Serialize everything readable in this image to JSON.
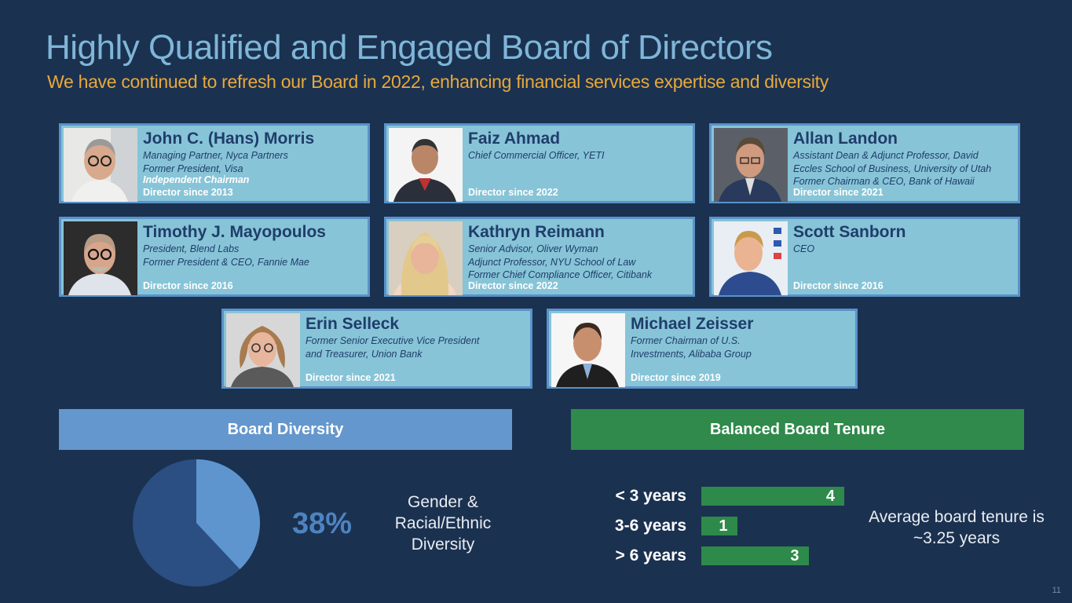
{
  "title": "Highly Qualified and Engaged Board of Directors",
  "subtitle": "We have continued to refresh our Board in 2022, enhancing financial services expertise and diversity",
  "directors": [
    {
      "name": "John C. (Hans) Morris",
      "roles": [
        "Managing Partner, Nyca Partners",
        "Former President, Visa"
      ],
      "chair": "Independent Chairman",
      "since": "Director since 2013"
    },
    {
      "name": "Faiz Ahmad",
      "roles": [
        "Chief Commercial Officer, YETI"
      ],
      "since": "Director since 2022"
    },
    {
      "name": "Allan Landon",
      "roles": [
        "Assistant Dean & Adjunct Professor, David",
        "Eccles School of Business, University of Utah",
        "Former Chairman & CEO, Bank of Hawaii"
      ],
      "since": "Director since 2021"
    },
    {
      "name": "Timothy J. Mayopoulos",
      "roles": [
        "President, Blend Labs",
        "Former President & CEO, Fannie Mae"
      ],
      "since": "Director since 2016"
    },
    {
      "name": "Kathryn Reimann",
      "roles": [
        "Senior Advisor, Oliver Wyman",
        "Adjunct Professor, NYU School of Law",
        "Former Chief Compliance Officer, Citibank"
      ],
      "since": "Director since 2022"
    },
    {
      "name": "Scott Sanborn",
      "roles": [
        "CEO"
      ],
      "since": "Director since 2016"
    },
    {
      "name": "Erin Selleck",
      "roles": [
        "Former Senior Executive Vice President",
        "and Treasurer, Union Bank"
      ],
      "since": "Director since 2021"
    },
    {
      "name": "Michael Zeisser",
      "roles": [
        "Former Chairman of U.S.",
        "Investments, Alibaba Group"
      ],
      "since": "Director since 2019"
    }
  ],
  "diversity": {
    "heading": "Board Diversity",
    "percent_label": "38%",
    "percent_value": 0.38,
    "label": "Gender & Racial/Ethnic Diversity",
    "colors": {
      "highlight": "#5f95cf",
      "rest": "#2b4f82"
    }
  },
  "tenure": {
    "heading": "Balanced Board Tenure",
    "rows": [
      {
        "label": "< 3 years",
        "value": 4
      },
      {
        "label": "3-6 years",
        "value": 1
      },
      {
        "label": "> 6 years",
        "value": 3
      }
    ],
    "average": "Average board tenure is ~3.25 years"
  },
  "colors": {
    "diversity_head": "#6497cd",
    "tenure_head": "#2f8a4b"
  },
  "page_number": "11"
}
